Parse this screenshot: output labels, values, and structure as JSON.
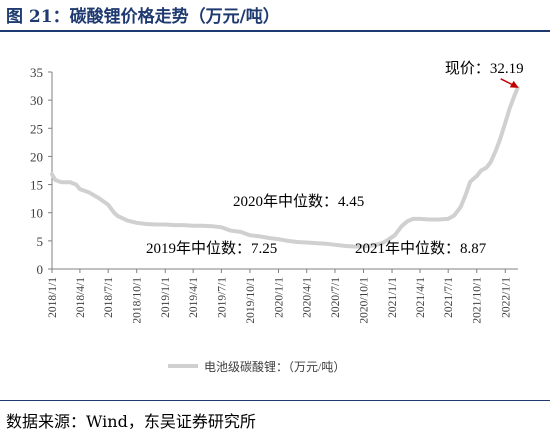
{
  "figure": {
    "title": "图 21：碳酸锂价格走势（万元/吨）",
    "source": "数据来源：Wind，东吴证券研究所"
  },
  "colors": {
    "title": "#1f3a70",
    "line": "#d0d0d0",
    "axis": "#808080",
    "arrow": "#c00000"
  },
  "chart_data": {
    "type": "line",
    "title": "",
    "xlabel": "",
    "ylabel": "",
    "ylim": [
      0,
      35
    ],
    "yticks": [
      0,
      5,
      10,
      15,
      20,
      25,
      30,
      35
    ],
    "xlim": [
      "2018-01-01",
      "2022-02-11"
    ],
    "xticks": [
      "2018/1/1",
      "2018/4/1",
      "2018/7/1",
      "2018/10/1",
      "2019/1/1",
      "2019/4/1",
      "2019/7/1",
      "2019/10/1",
      "2020/1/1",
      "2020/4/1",
      "2020/7/1",
      "2020/10/1",
      "2021/1/1",
      "2021/4/1",
      "2021/7/1",
      "2021/10/1",
      "2022/1/1"
    ],
    "grid": false,
    "legend": "bottom",
    "series": [
      {
        "name": "电池级碳酸锂：（万元/吨）",
        "points": [
          [
            "2018-01-01",
            16.8
          ],
          [
            "2018-01-12",
            15.8
          ],
          [
            "2018-02-01",
            15.4
          ],
          [
            "2018-03-01",
            15.4
          ],
          [
            "2018-03-20",
            15.0
          ],
          [
            "2018-04-01",
            14.2
          ],
          [
            "2018-05-01",
            13.6
          ],
          [
            "2018-06-01",
            12.6
          ],
          [
            "2018-07-01",
            11.4
          ],
          [
            "2018-07-20",
            10.0
          ],
          [
            "2018-08-01",
            9.4
          ],
          [
            "2018-09-01",
            8.6
          ],
          [
            "2018-10-01",
            8.2
          ],
          [
            "2018-11-01",
            8.0
          ],
          [
            "2018-12-01",
            7.9
          ],
          [
            "2019-01-01",
            7.9
          ],
          [
            "2019-02-01",
            7.8
          ],
          [
            "2019-03-01",
            7.8
          ],
          [
            "2019-04-01",
            7.7
          ],
          [
            "2019-05-01",
            7.7
          ],
          [
            "2019-06-01",
            7.6
          ],
          [
            "2019-07-01",
            7.4
          ],
          [
            "2019-08-01",
            6.8
          ],
          [
            "2019-09-01",
            6.6
          ],
          [
            "2019-10-01",
            6.0
          ],
          [
            "2019-11-01",
            5.8
          ],
          [
            "2019-12-01",
            5.5
          ],
          [
            "2020-01-01",
            5.3
          ],
          [
            "2020-02-01",
            5.0
          ],
          [
            "2020-03-01",
            4.8
          ],
          [
            "2020-04-01",
            4.7
          ],
          [
            "2020-05-01",
            4.6
          ],
          [
            "2020-06-01",
            4.5
          ],
          [
            "2020-07-01",
            4.3
          ],
          [
            "2020-08-01",
            4.1
          ],
          [
            "2020-09-01",
            4.0
          ],
          [
            "2020-10-01",
            4.0
          ],
          [
            "2020-11-01",
            4.2
          ],
          [
            "2020-12-01",
            4.6
          ],
          [
            "2020-12-20",
            5.2
          ],
          [
            "2021-01-10",
            6.0
          ],
          [
            "2021-02-01",
            7.6
          ],
          [
            "2021-02-20",
            8.5
          ],
          [
            "2021-03-10",
            8.9
          ],
          [
            "2021-04-01",
            8.9
          ],
          [
            "2021-05-01",
            8.8
          ],
          [
            "2021-06-01",
            8.8
          ],
          [
            "2021-07-01",
            8.9
          ],
          [
            "2021-07-20",
            9.5
          ],
          [
            "2021-08-10",
            11.0
          ],
          [
            "2021-08-25",
            13.0
          ],
          [
            "2021-09-10",
            15.5
          ],
          [
            "2021-09-20",
            16.0
          ],
          [
            "2021-10-01",
            16.5
          ],
          [
            "2021-10-15",
            17.5
          ],
          [
            "2021-11-01",
            18.0
          ],
          [
            "2021-11-15",
            19.0
          ],
          [
            "2021-12-01",
            21.0
          ],
          [
            "2021-12-15",
            23.0
          ],
          [
            "2022-01-01",
            26.0
          ],
          [
            "2022-01-15",
            28.5
          ],
          [
            "2022-02-01",
            31.0
          ],
          [
            "2022-02-10",
            32.19
          ]
        ]
      }
    ],
    "annotations": [
      {
        "text": "现价：32.19",
        "x": "2022-02-10",
        "y": 32.19,
        "arrow": true
      },
      {
        "text": "2019年中位数：7.25",
        "year": 2019,
        "value": 7.25
      },
      {
        "text": "2020年中位数：4.45",
        "year": 2020,
        "value": 4.45
      },
      {
        "text": "2021年中位数：8.87",
        "year": 2021,
        "value": 8.87
      }
    ]
  }
}
